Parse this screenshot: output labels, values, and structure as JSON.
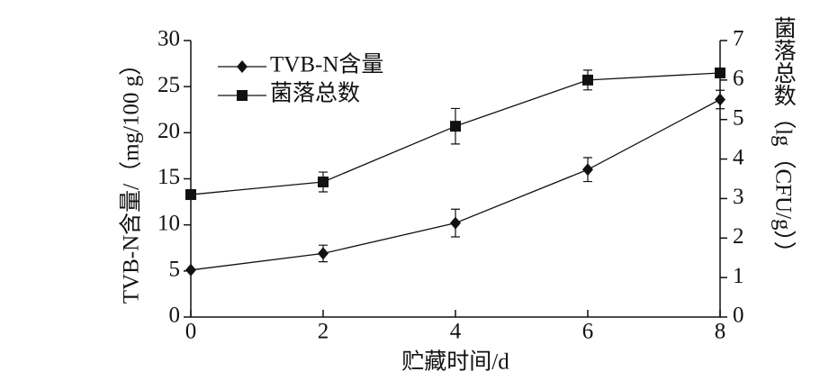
{
  "chart_data": {
    "type": "line",
    "x_label": "贮藏时间/d",
    "y_label": "TVB-N含量/（mg/100 g）",
    "y2_label": "菌落总数（lg（CFU/g））",
    "x": [
      0,
      2,
      4,
      6,
      8
    ],
    "xlim": [
      0,
      8
    ],
    "xticks": [
      0,
      2,
      4,
      6,
      8
    ],
    "ylim": [
      0,
      30
    ],
    "yticks": [
      0,
      5,
      10,
      15,
      20,
      25,
      30
    ],
    "y2lim": [
      0,
      7
    ],
    "y2ticks": [
      0,
      1,
      2,
      3,
      4,
      5,
      6,
      7
    ],
    "legend": "upper left",
    "series": [
      {
        "name": "TVB-N含量",
        "color": "#111111",
        "marker": "diamond",
        "values": [
          5.1,
          6.9,
          10.2,
          16.0,
          23.6
        ],
        "errors": [
          0,
          0.9,
          1.5,
          1.3,
          1.0
        ]
      },
      {
        "name": "菌落总数",
        "color": "#111111",
        "marker": "square",
        "axis": "y2",
        "values": [
          3.1,
          3.42,
          4.83,
          6.0,
          6.18
        ],
        "errors": [
          0,
          0.25,
          0.45,
          0.25,
          0.1
        ]
      }
    ]
  }
}
